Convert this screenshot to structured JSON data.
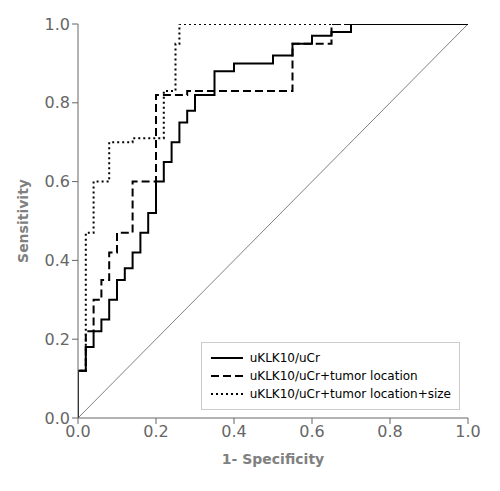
{
  "chart_data": {
    "type": "line",
    "xlabel": "1- Specificity",
    "ylabel": "Sensitivity",
    "xlim": [
      0.0,
      1.0
    ],
    "ylim": [
      0.0,
      1.0
    ],
    "xticks": [
      {
        "value": 0.0,
        "label": "0.0"
      },
      0.2,
      0.4,
      0.6,
      0.8,
      {
        "value": 1.0,
        "label": "1.0"
      }
    ],
    "yticks": [
      {
        "value": 0.0,
        "label": "0.0"
      },
      0.2,
      0.4,
      0.6,
      0.8,
      {
        "value": 1.0,
        "label": "1.0"
      }
    ],
    "legend": "lower right",
    "diagonal": {
      "x": [
        0,
        1
      ],
      "values": [
        0,
        1
      ],
      "color": "#808080",
      "line_style": "solid"
    },
    "series": [
      {
        "name": "uKLK10/uCr",
        "color": "#000000",
        "line_style": "solid",
        "x": [
          0.0,
          0.0,
          0.02,
          0.02,
          0.04,
          0.04,
          0.06,
          0.06,
          0.08,
          0.08,
          0.1,
          0.1,
          0.12,
          0.12,
          0.14,
          0.14,
          0.16,
          0.16,
          0.18,
          0.18,
          0.2,
          0.2,
          0.22,
          0.22,
          0.24,
          0.24,
          0.26,
          0.26,
          0.28,
          0.28,
          0.3,
          0.3,
          0.35,
          0.35,
          0.4,
          0.4,
          0.5,
          0.5,
          0.55,
          0.55,
          0.6,
          0.6,
          0.65,
          0.65,
          0.7,
          0.7,
          1.0
        ],
        "values": [
          0.0,
          0.12,
          0.12,
          0.18,
          0.18,
          0.22,
          0.22,
          0.25,
          0.25,
          0.3,
          0.3,
          0.35,
          0.35,
          0.38,
          0.38,
          0.42,
          0.42,
          0.47,
          0.47,
          0.52,
          0.52,
          0.6,
          0.6,
          0.65,
          0.65,
          0.7,
          0.7,
          0.75,
          0.75,
          0.78,
          0.78,
          0.82,
          0.82,
          0.88,
          0.88,
          0.9,
          0.9,
          0.92,
          0.92,
          0.95,
          0.95,
          0.97,
          0.97,
          0.98,
          0.98,
          1.0,
          1.0
        ]
      },
      {
        "name": "uKLK10/uCr+tumor location",
        "color": "#000000",
        "line_style": "dashed",
        "x": [
          0.0,
          0.0,
          0.02,
          0.02,
          0.04,
          0.04,
          0.06,
          0.06,
          0.08,
          0.08,
          0.1,
          0.1,
          0.14,
          0.14,
          0.2,
          0.2,
          0.28,
          0.28,
          0.32,
          0.32,
          0.55,
          0.55,
          0.65,
          0.65,
          1.0
        ],
        "values": [
          0.0,
          0.12,
          0.12,
          0.22,
          0.22,
          0.3,
          0.3,
          0.35,
          0.35,
          0.42,
          0.42,
          0.47,
          0.47,
          0.6,
          0.6,
          0.82,
          0.82,
          0.83,
          0.83,
          0.83,
          0.83,
          0.95,
          0.95,
          1.0,
          1.0
        ]
      },
      {
        "name": "uKLK10/uCr+tumor location+size",
        "color": "#000000",
        "line_style": "dotted",
        "x": [
          0.0,
          0.0,
          0.02,
          0.02,
          0.04,
          0.04,
          0.08,
          0.08,
          0.14,
          0.14,
          0.22,
          0.22,
          0.25,
          0.25,
          0.26,
          0.26,
          0.65,
          0.65,
          1.0
        ],
        "values": [
          0.0,
          0.12,
          0.12,
          0.47,
          0.47,
          0.6,
          0.6,
          0.7,
          0.7,
          0.71,
          0.71,
          0.83,
          0.83,
          0.95,
          0.95,
          1.0,
          1.0,
          1.0,
          1.0
        ]
      }
    ]
  }
}
